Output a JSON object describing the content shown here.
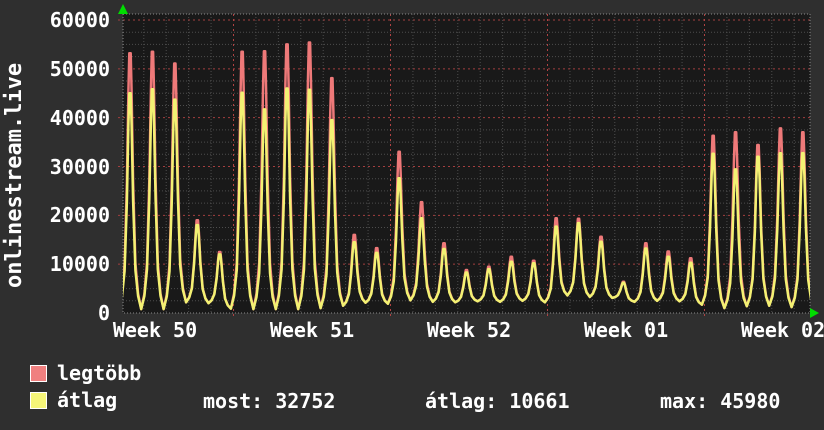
{
  "site_label": "onlinestream.live",
  "colors": {
    "page_bg": "#2f2f2f",
    "plot_bg": "#191919",
    "grid_minor": "#4d4d4d",
    "grid_major": "#a33f3f",
    "grid_week": "#b04242",
    "plot_border": "#8a8a8a",
    "text": "#ffffff",
    "series_max": "#ee7979",
    "series_avg": "#f3f173",
    "swatch_max": "#f08080",
    "swatch_avg": "#f5f578",
    "arrow": "#00dd00"
  },
  "icons": [
    "axis-up-arrow-icon",
    "axis-right-arrow-icon"
  ],
  "legend": [
    {
      "label": "legtöbb",
      "swatch": "#f08080"
    },
    {
      "label": "átlag",
      "swatch": "#f5f578"
    }
  ],
  "stats": [
    {
      "label": "most:",
      "value": "32752"
    },
    {
      "label": "átlag:",
      "value": "10661"
    },
    {
      "label": "max:",
      "value": "45980"
    }
  ],
  "chart_data": {
    "type": "line",
    "title": "",
    "ylabel_rotated": "onlinestream.live",
    "ylim": [
      0,
      61400
    ],
    "y_ticks": [
      0,
      10000,
      20000,
      30000,
      40000,
      50000,
      60000
    ],
    "y_minor_step": 2500,
    "x_week_labels": [
      "Week 50",
      "Week 51",
      "Week 52",
      "Week 01",
      "Week 02"
    ],
    "days_per_week": 7,
    "grid": "dotted",
    "legend_position": "bottom-left",
    "series": [
      {
        "name": "legtöbb",
        "color": "#ee7979",
        "daily_peaks": [
          53200,
          53500,
          51100,
          19000,
          12500,
          53500,
          53600,
          55000,
          55400,
          48100,
          16000,
          13300,
          33000,
          22700,
          14300,
          8800,
          9500,
          11500,
          10700,
          19400,
          19300,
          15600,
          6400,
          14300,
          12600,
          11200,
          36300,
          37000,
          34400,
          37800,
          37000
        ]
      },
      {
        "name": "átlag",
        "color": "#f3f173",
        "daily_peaks": [
          45000,
          45800,
          43700,
          18000,
          12000,
          45100,
          41700,
          45980,
          45700,
          39500,
          14500,
          12300,
          27600,
          19400,
          13100,
          8300,
          9000,
          10500,
          10200,
          17700,
          18400,
          14600,
          6200,
          13200,
          11500,
          10300,
          32600,
          29400,
          32000,
          32700,
          32752
        ]
      }
    ],
    "daily_troughs": [
      600,
      800,
      800,
      2200,
      2000,
      900,
      800,
      800,
      800,
      1000,
      1500,
      2100,
      1900,
      2600,
      2300,
      2200,
      2400,
      2300,
      2500,
      2200,
      3600,
      3300,
      3100,
      2300,
      2500,
      2400,
      1700,
      1000,
      1400,
      1500,
      1200,
      1100
    ],
    "stats_line": {
      "most": 32752,
      "atlag": 10661,
      "max": 45980
    }
  }
}
